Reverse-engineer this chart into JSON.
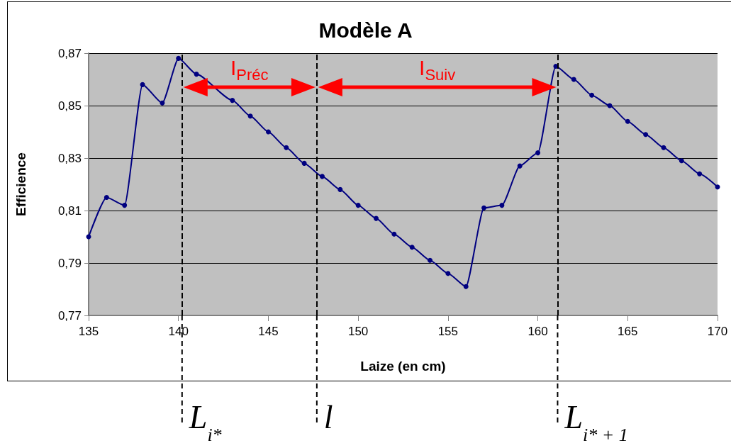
{
  "chart_data": {
    "type": "line",
    "title": "Modèle A",
    "xlabel": "Laize (en cm)",
    "ylabel": "Efficience",
    "x": [
      135,
      136,
      137,
      138,
      139.1,
      140,
      141,
      143,
      144,
      145,
      146,
      147,
      148,
      149,
      150,
      151,
      152,
      153,
      154,
      155,
      156,
      157,
      158,
      159,
      160,
      161,
      162,
      163,
      164,
      165,
      166,
      167,
      168,
      169,
      170
    ],
    "series": [
      {
        "color": "#000080",
        "values": [
          0.8,
          0.815,
          0.812,
          0.858,
          0.851,
          0.868,
          0.862,
          0.852,
          0.846,
          0.84,
          0.834,
          0.828,
          0.823,
          0.818,
          0.812,
          0.807,
          0.801,
          0.796,
          0.791,
          0.786,
          0.781,
          0.811,
          0.812,
          0.827,
          0.832,
          0.865,
          0.86,
          0.854,
          0.85,
          0.844,
          0.839,
          0.834,
          0.829,
          0.824,
          0.819
        ]
      }
    ],
    "xlim": [
      135,
      170
    ],
    "xticks": [
      135,
      140,
      145,
      150,
      155,
      160,
      165,
      170
    ],
    "ylim": [
      0.77,
      0.87
    ],
    "yticks": [
      {
        "value": 0.77,
        "label": "0,77"
      },
      {
        "value": 0.79,
        "label": "0,79"
      },
      {
        "value": 0.81,
        "label": "0,81"
      },
      {
        "value": 0.83,
        "label": "0,83"
      },
      {
        "value": 0.85,
        "label": "0,85"
      },
      {
        "value": 0.87,
        "label": "0,87"
      }
    ],
    "grid": "y",
    "marker": "circle",
    "line_style": "solid",
    "ref_lines": [
      {
        "axis": "x",
        "value": 140.2,
        "label": "L$_{i*}$",
        "color": "#000000",
        "line_style": "dashed"
      },
      {
        "axis": "x",
        "value": 147.7,
        "label": "l",
        "color": "#000000",
        "line_style": "dashed"
      },
      {
        "axis": "x",
        "value": 161.1,
        "label": "L$_{i* + 1}$",
        "color": "#000000",
        "line_style": "dashed"
      }
    ],
    "annotations": [
      "I$_{Préc}$",
      "I$_{Suiv}$"
    ]
  }
}
